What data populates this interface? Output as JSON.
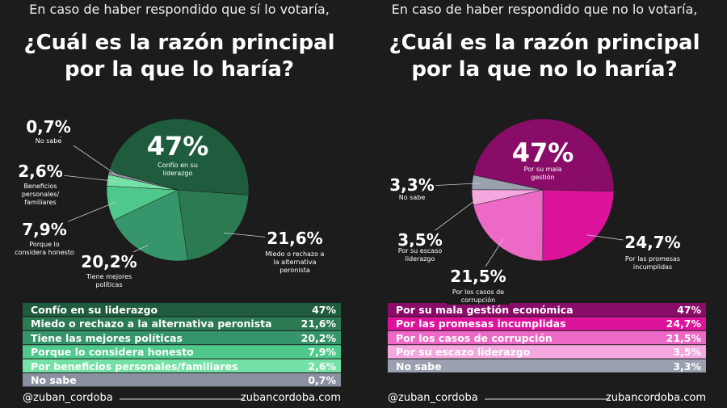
{
  "chart_data": [
    {
      "type": "pie",
      "subtitle": "En caso de haber respondido que sí lo votaría,",
      "title_lines": [
        "¿Cuál es la razón principal",
        "por la que lo haría?"
      ],
      "categories": [
        "Confío en su liderazgo",
        "Miedo o rechazo a la alternativa peronista",
        "Tiene las mejores políticas",
        "Porque lo considera honesto",
        "Por beneficios personales/familiares",
        "No sabe"
      ],
      "slice_labels": [
        "Confío en su liderazgo",
        "Miedo o rechazo a la alternativa peronista",
        "Tiene mejores políticas",
        "Porque lo considera honesto",
        "Beneficios personales/ familiares",
        "No sabe"
      ],
      "values": [
        47,
        21.6,
        20.2,
        7.9,
        2.6,
        0.7
      ],
      "value_labels": [
        "47%",
        "21,6%",
        "20,2%",
        "7,9%",
        "2,6%",
        "0,7%"
      ],
      "colors": [
        "#1f5c3d",
        "#2b7a52",
        "#36956a",
        "#4fc98b",
        "#74e2a7",
        "#8b90a0"
      ],
      "footer_left": "@zuban_cordoba",
      "footer_right": "zubancordoba.com"
    },
    {
      "type": "pie",
      "subtitle": "En caso de haber respondido que no lo votaría,",
      "title_lines": [
        "¿Cuál es la razón principal",
        "por la que no lo haría?"
      ],
      "categories": [
        "Por su mala gestión económica",
        "Por las promesas incumplidas",
        "Por los casos de corrupción",
        "Por su escazo liderazgo",
        "No sabe"
      ],
      "slice_labels": [
        "Por su mala gestión",
        "Por las promesas incumplidas",
        "Por los casos de corrupción",
        "Por su escaso liderazgo",
        "No sabe"
      ],
      "values": [
        47,
        24.7,
        21.5,
        3.5,
        3.3
      ],
      "value_labels": [
        "47%",
        "24,7%",
        "21,5%",
        "3,5%",
        "3,3%"
      ],
      "colors": [
        "#8a0c69",
        "#de139c",
        "#ec6ac6",
        "#f4a8df",
        "#9aa0b0"
      ],
      "footer_left": "@zuban_cordoba",
      "footer_right": "zubancordoba.com"
    }
  ]
}
